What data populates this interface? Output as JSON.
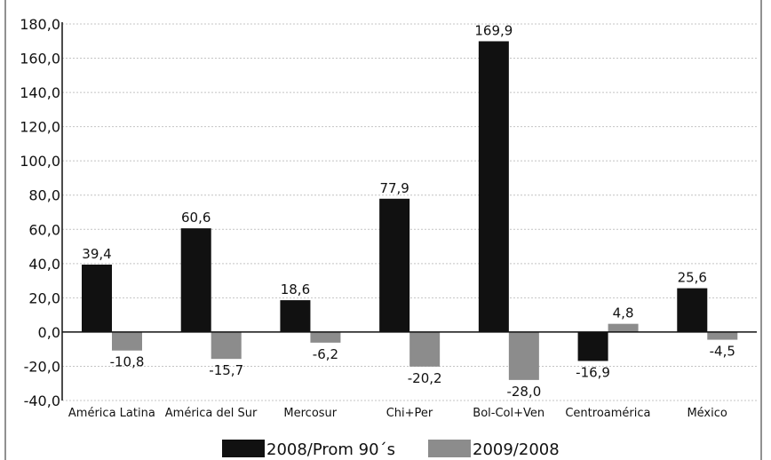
{
  "chart_data": {
    "type": "bar",
    "categories": [
      "América Latina",
      "América del Sur",
      "Mercosur",
      "Chi+Per",
      "Bol-Col+Ven",
      "Centroamérica",
      "México"
    ],
    "series": [
      {
        "name": "2008/Prom 90´s",
        "color": "#111111",
        "values": [
          39.4,
          60.6,
          18.6,
          77.9,
          169.9,
          -16.9,
          25.6
        ],
        "labels": [
          "39,4",
          "60,6",
          "18,6",
          "77,9",
          "169,9",
          "-16,9",
          "25,6"
        ]
      },
      {
        "name": "2009/2008",
        "color": "#8c8c8c",
        "values": [
          -10.8,
          -15.7,
          -6.2,
          -20.2,
          -28.0,
          4.8,
          -4.5
        ],
        "labels": [
          "-10,8",
          "-15,7",
          "-6,2",
          "-20,2",
          "-28,0",
          "4,8",
          "-4,5"
        ]
      }
    ],
    "yticks": [
      180,
      160,
      140,
      120,
      100,
      80,
      60,
      40,
      20,
      0,
      -20,
      -40
    ],
    "ytick_labels": [
      "180,0",
      "160,0",
      "140,0",
      "120,0",
      "100,0",
      "80,0",
      "60,0",
      "40,0",
      "20,0",
      "0,0",
      "-20,0",
      "-40,0"
    ],
    "ylim": [
      -40,
      180
    ],
    "grid": true,
    "legend_position": "bottom"
  }
}
